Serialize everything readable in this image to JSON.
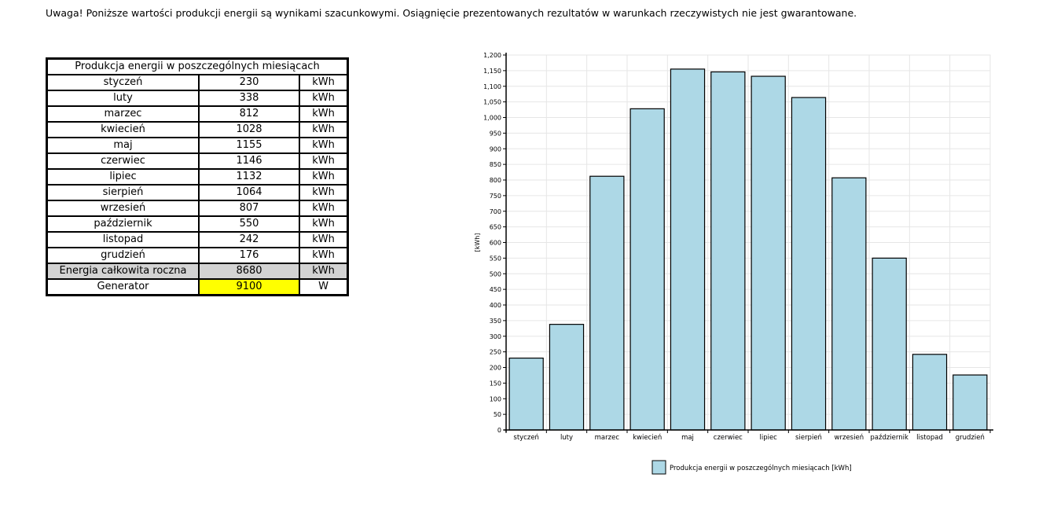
{
  "warning": "Uwaga! Poniższe wartości produkcji energii są wynikami szacunkowymi. Osiągnięcie prezentowanych rezultatów w warunkach rzeczywistych nie jest gwarantowane.",
  "table": {
    "title": "Produkcja energii w poszczególnych miesiącach",
    "rows": [
      {
        "month": "styczeń",
        "value": "230",
        "unit": "kWh"
      },
      {
        "month": "luty",
        "value": "338",
        "unit": "kWh"
      },
      {
        "month": "marzec",
        "value": "812",
        "unit": "kWh"
      },
      {
        "month": "kwiecień",
        "value": "1028",
        "unit": "kWh"
      },
      {
        "month": "maj",
        "value": "1155",
        "unit": "kWh"
      },
      {
        "month": "czerwiec",
        "value": "1146",
        "unit": "kWh"
      },
      {
        "month": "lipiec",
        "value": "1132",
        "unit": "kWh"
      },
      {
        "month": "sierpień",
        "value": "1064",
        "unit": "kWh"
      },
      {
        "month": "wrzesień",
        "value": "807",
        "unit": "kWh"
      },
      {
        "month": "październik",
        "value": "550",
        "unit": "kWh"
      },
      {
        "month": "listopad",
        "value": "242",
        "unit": "kWh"
      },
      {
        "month": "grudzień",
        "value": "176",
        "unit": "kWh"
      }
    ],
    "total": {
      "label": "Energia całkowita roczna",
      "value": "8680",
      "unit": "kWh"
    },
    "generator": {
      "label": "Generator",
      "value": "9100",
      "unit": "W"
    }
  },
  "colors": {
    "bar": "#add8e6",
    "generator_highlight": "#ffff00",
    "total_row": "#d3d3d3"
  },
  "chart_data": {
    "type": "bar",
    "categories": [
      "styczeń",
      "luty",
      "marzec",
      "kwiecień",
      "maj",
      "czerwiec",
      "lipiec",
      "sierpień",
      "wrzesień",
      "październik",
      "listopad",
      "grudzień"
    ],
    "series": [
      {
        "name": "Produkcja energii w poszczególnych miesiącach [kWh]",
        "values": [
          230,
          338,
          812,
          1028,
          1155,
          1146,
          1132,
          1064,
          807,
          550,
          242,
          176
        ]
      }
    ],
    "ylabel": "[kWh]",
    "xlabel": "",
    "ylim": [
      0,
      1200
    ],
    "ytick_step": 50,
    "ytick_labels": [
      "0",
      "50",
      "100",
      "150",
      "200",
      "250",
      "300",
      "350",
      "400",
      "450",
      "500",
      "550",
      "600",
      "650",
      "700",
      "750",
      "800",
      "850",
      "900",
      "950",
      "1,000",
      "1,050",
      "1,100",
      "1,150",
      "1,200"
    ],
    "grid": true,
    "legend": "bottom-center"
  }
}
